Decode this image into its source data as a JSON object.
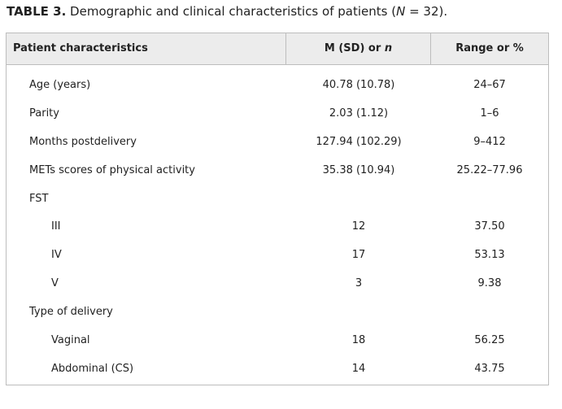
{
  "caption": {
    "label": "TABLE 3.",
    "text_before_n": " Demographic and clinical characteristics of patients (",
    "n_symbol": "N",
    "text_after_n": " = 32)."
  },
  "table": {
    "headers": {
      "col1": "Patient characteristics",
      "col2_main": "M (SD) or ",
      "col2_italic": "n",
      "col3": "Range or %"
    },
    "rows": [
      {
        "label": "Age (years)",
        "value": "40.78 (10.78)",
        "range": "24–67"
      },
      {
        "label": "Parity",
        "value": "2.03 (1.12)",
        "range": "1–6"
      },
      {
        "label": "Months postdelivery",
        "value": "127.94 (102.29)",
        "range": "9–412"
      },
      {
        "label": "METs scores of physical activity",
        "value": "35.38 (10.94)",
        "range": "25.22–77.96"
      },
      {
        "label": "FST",
        "value": "",
        "range": ""
      },
      {
        "label": "III",
        "value": "12",
        "range": "37.50"
      },
      {
        "label": "IV",
        "value": "17",
        "range": "53.13"
      },
      {
        "label": "V",
        "value": "3",
        "range": "9.38"
      },
      {
        "label": "Type of delivery",
        "value": "",
        "range": ""
      },
      {
        "label": "Vaginal",
        "value": "18",
        "range": "56.25"
      },
      {
        "label": "Abdominal (CS)",
        "value": "14",
        "range": "43.75"
      }
    ]
  }
}
